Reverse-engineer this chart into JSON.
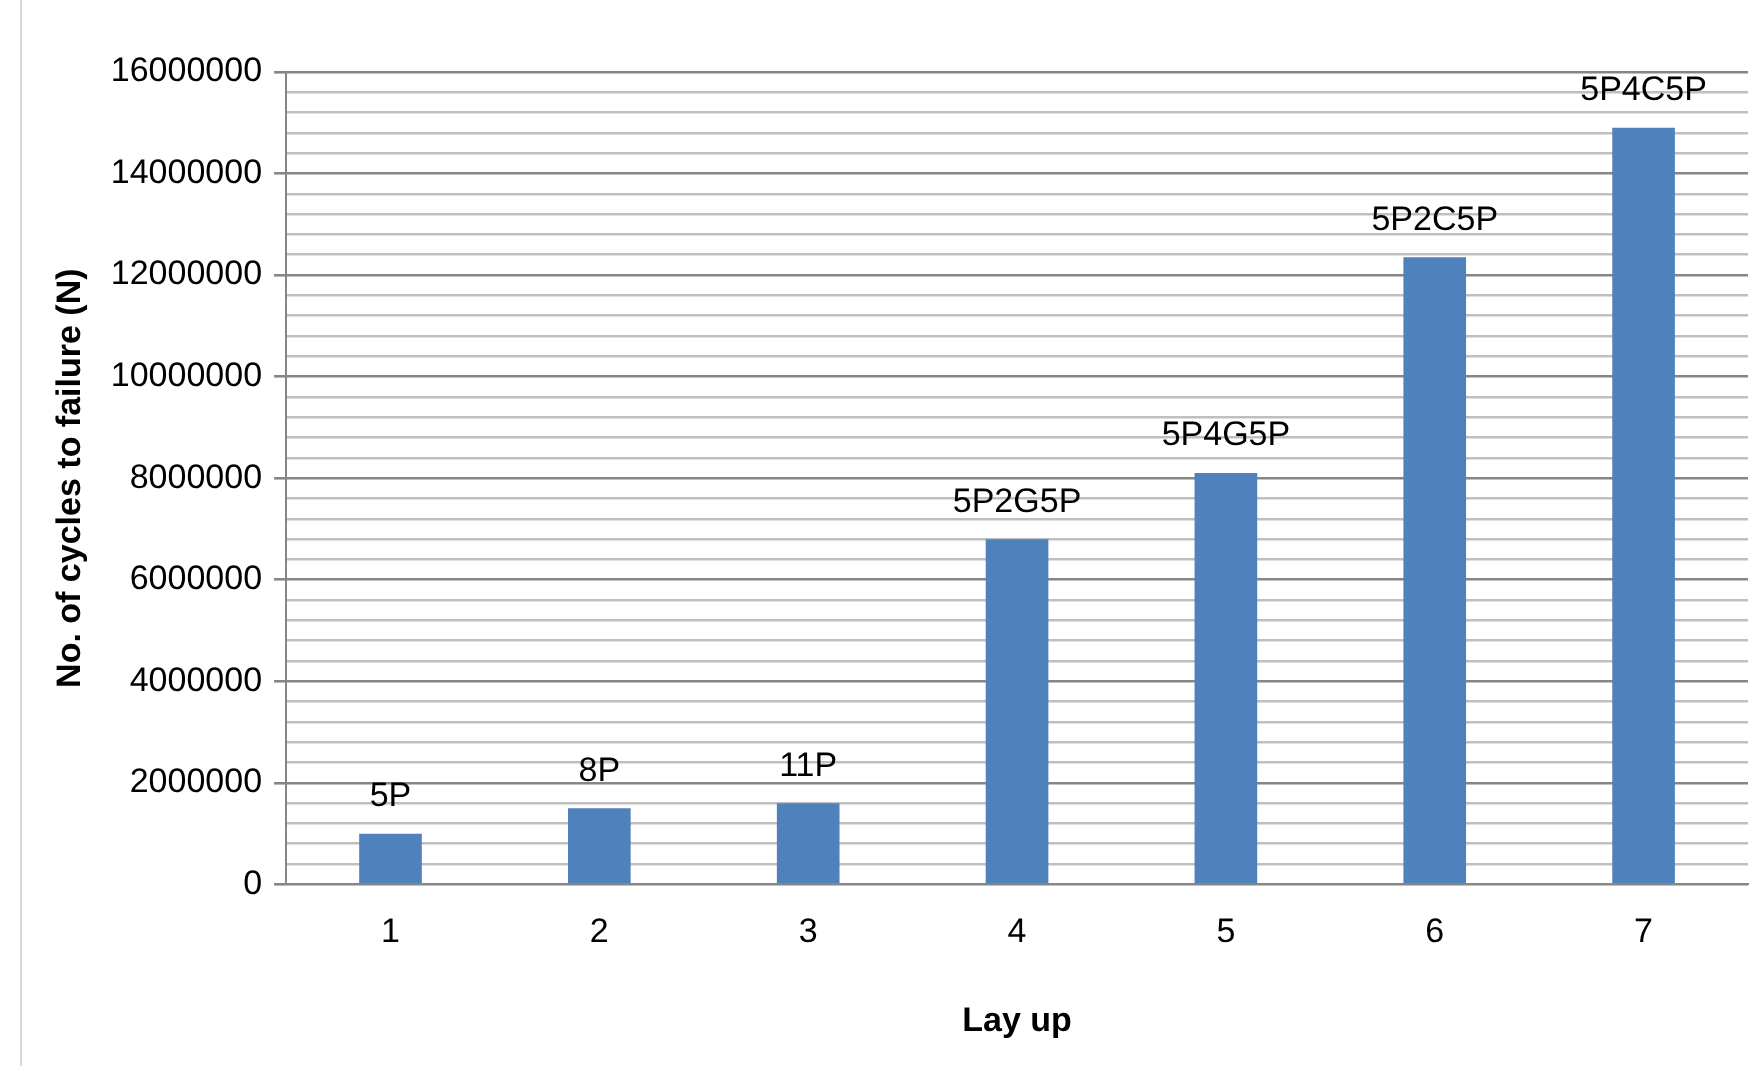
{
  "chart_data": {
    "type": "bar",
    "xlabel": "Lay up",
    "ylabel": "No. of cycles to failure (N)",
    "categories": [
      "1",
      "2",
      "3",
      "4",
      "5",
      "6",
      "7"
    ],
    "values": [
      1000000,
      1500000,
      1600000,
      6800000,
      8100000,
      12350000,
      14900000
    ],
    "annotations": [
      {
        "text": "5P",
        "x": "1",
        "y": 1000000
      },
      {
        "text": "8P",
        "x": "2",
        "y": 1500000
      },
      {
        "text": "11P",
        "x": "3",
        "y": 1600000
      },
      {
        "text": "5P2G5P",
        "x": "4",
        "y": 6800000
      },
      {
        "text": "5P4G5P",
        "x": "5",
        "y": 8100000
      },
      {
        "text": "5P2C5P",
        "x": "6",
        "y": 12350000
      },
      {
        "text": "5P4C5P",
        "x": "7",
        "y": 14900000
      }
    ],
    "color": "#4f81bd",
    "ylim": [
      0,
      16000000
    ],
    "yticks": [
      0,
      {
        "value": 400000,
        "label": null
      },
      {
        "value": 800000,
        "label": null
      },
      {
        "value": 1200000,
        "label": null
      },
      {
        "value": 1600000,
        "label": null
      },
      2000000,
      {
        "value": 2400000,
        "label": null
      },
      {
        "value": 2800000,
        "label": null
      },
      {
        "value": 3200000,
        "label": null
      },
      {
        "value": 3600000,
        "label": null
      },
      4000000,
      {
        "value": 4400000,
        "label": null
      },
      {
        "value": 4800000,
        "label": null
      },
      {
        "value": 5200000,
        "label": null
      },
      {
        "value": 5600000,
        "label": null
      },
      6000000,
      {
        "value": 6400000,
        "label": null
      },
      {
        "value": 6800000,
        "label": null
      },
      {
        "value": 7200000,
        "label": null
      },
      {
        "value": 7600000,
        "label": null
      },
      8000000,
      {
        "value": 8400000,
        "label": null
      },
      {
        "value": 8800000,
        "label": null
      },
      {
        "value": 9200000,
        "label": null
      },
      {
        "value": 9600000,
        "label": null
      },
      10000000,
      {
        "value": 10400000,
        "label": null
      },
      {
        "value": 10800000,
        "label": null
      },
      {
        "value": 11200000,
        "label": null
      },
      {
        "value": 11600000,
        "label": null
      },
      12000000,
      {
        "value": 12400000,
        "label": null
      },
      {
        "value": 12800000,
        "label": null
      },
      {
        "value": 13200000,
        "label": null
      },
      {
        "value": 13600000,
        "label": null
      },
      14000000,
      {
        "value": 14400000,
        "label": null
      },
      {
        "value": 14800000,
        "label": null
      },
      {
        "value": 15200000,
        "label": null
      },
      {
        "value": 15600000,
        "label": null
      },
      16000000
    ],
    "grid": "y",
    "legend": false
  }
}
